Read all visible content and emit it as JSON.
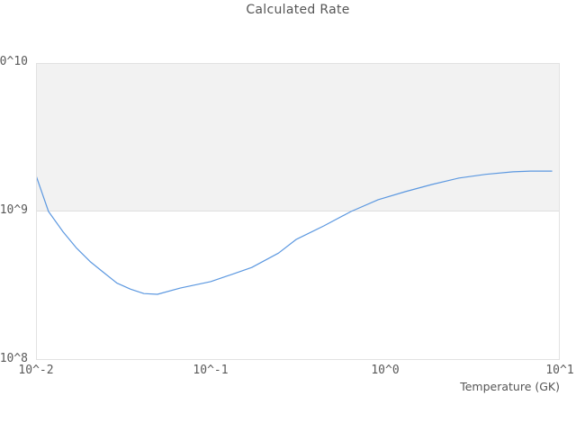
{
  "chart": {
    "title": "Calculated Rate",
    "xlabel": "Temperature (GK)"
  },
  "chart_data": {
    "type": "line",
    "title": "Calculated Rate",
    "xlabel": "Temperature (GK)",
    "ylabel": "",
    "x_scale": "log",
    "y_scale": "log",
    "xlim": [
      0.01,
      10
    ],
    "ylim": [
      100000000.0,
      10000000000.0
    ],
    "grid": false,
    "legend": false,
    "x_ticks": [
      0.01,
      0.1,
      1,
      10
    ],
    "x_tick_labels": [
      "10^-2",
      "10^-1",
      "10^0",
      "10^1"
    ],
    "y_ticks": [
      100000000.0,
      1000000000.0,
      10000000000.0
    ],
    "y_tick_labels": [
      "10^8",
      "10^9",
      "10^10"
    ],
    "shaded_band": {
      "y_from": 1000000000.0,
      "y_to": 10000000000.0,
      "color": "#f2f2f2"
    },
    "series": [
      {
        "name": "calculated-rate",
        "color": "#5c98e0",
        "x": [
          0.01,
          0.0118,
          0.0143,
          0.017,
          0.0204,
          0.0243,
          0.029,
          0.0348,
          0.0415,
          0.0496,
          0.067,
          0.1,
          0.135,
          0.172,
          0.245,
          0.31,
          0.445,
          0.637,
          0.91,
          1.3,
          1.85,
          2.65,
          3.77,
          5.4,
          6.8,
          9.0
        ],
        "y": [
          1750000000.0,
          1000000000.0,
          730000000.0,
          570000000.0,
          460000000.0,
          390000000.0,
          330000000.0,
          300000000.0,
          280000000.0,
          277000000.0,
          305000000.0,
          337000000.0,
          380000000.0,
          420000000.0,
          525000000.0,
          650000000.0,
          800000000.0,
          1000000000.0,
          1200000000.0,
          1360000000.0,
          1520000000.0,
          1680000000.0,
          1780000000.0,
          1850000000.0,
          1870000000.0,
          1870000000.0
        ]
      }
    ]
  },
  "colors": {
    "line": "#5c98e0",
    "band_fill": "#f2f2f2",
    "plot_border": "#e2e2e2",
    "tick_text": "#595959",
    "title_text": "#555555",
    "background": "#ffffff"
  }
}
